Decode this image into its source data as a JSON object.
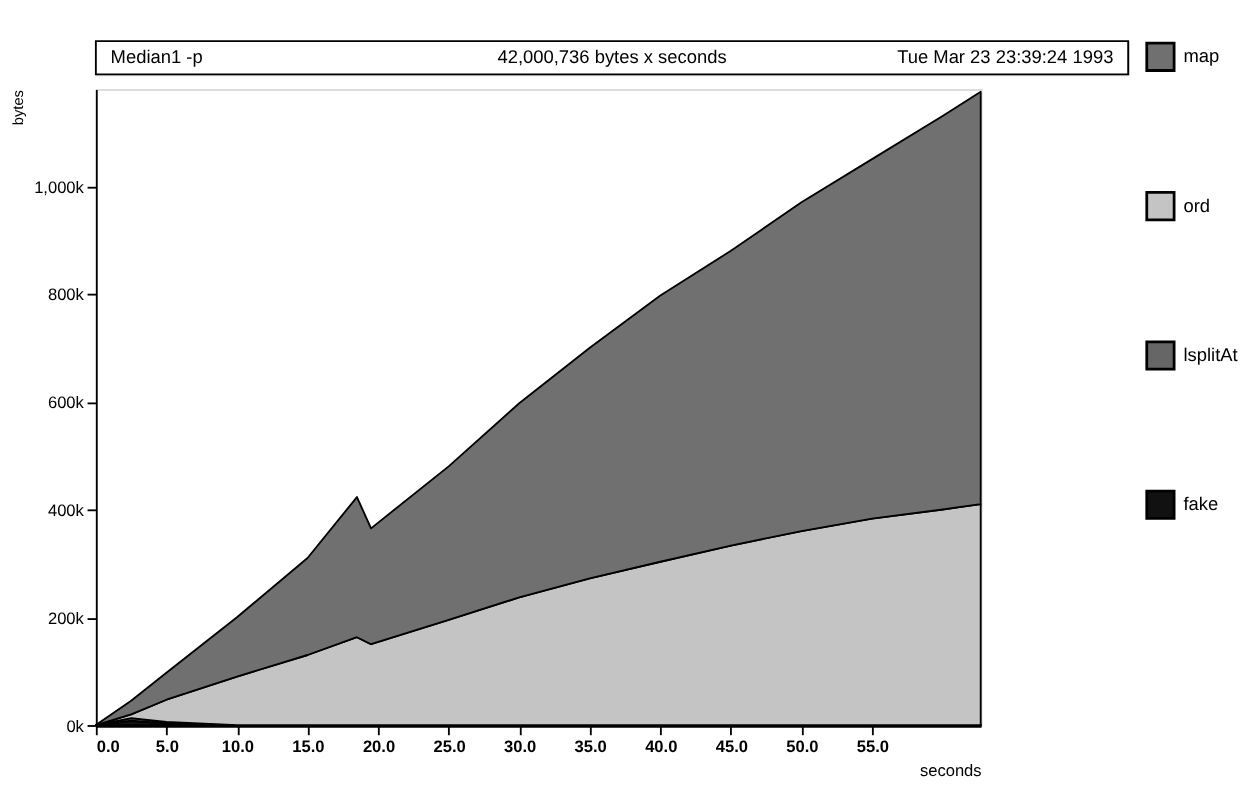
{
  "chart_data": {
    "type": "area",
    "stacked": true,
    "title": "Median1 -p",
    "subtitle": "42,000,736 bytes x seconds",
    "annotations": [
      "Tue Mar 23 23:39:24 1993"
    ],
    "xlabel": "seconds",
    "ylabel": "bytes",
    "x": [
      0,
      2.5,
      5,
      10,
      15,
      18.5,
      19.5,
      25,
      30,
      35,
      40,
      45,
      50,
      55,
      60,
      62.7
    ],
    "series": [
      {
        "name": "fake",
        "color": "#111111",
        "values": [
          0,
          8000,
          3000,
          0,
          0,
          0,
          0,
          0,
          0,
          0,
          0,
          0,
          0,
          0,
          0,
          0
        ]
      },
      {
        "name": "lsplitAt",
        "color": "#666666",
        "values": [
          0,
          5000,
          3000,
          0,
          0,
          0,
          0,
          0,
          0,
          0,
          0,
          0,
          0,
          0,
          0,
          0
        ]
      },
      {
        "name": "ord",
        "color": "#c4c4c4",
        "values": [
          0,
          7000,
          41000,
          90000,
          130000,
          163000,
          150000,
          195000,
          237000,
          272000,
          303000,
          333000,
          360000,
          383000,
          400000,
          410000
        ]
      },
      {
        "name": "map",
        "color": "#707070",
        "values": [
          0,
          25000,
          50000,
          110000,
          180000,
          260000,
          215000,
          285000,
          360000,
          428000,
          494000,
          547000,
          610000,
          667000,
          730000,
          765000
        ]
      }
    ],
    "xlim": [
      0,
      62.7
    ],
    "xticks": [
      {
        "value": 0,
        "label": "0.0"
      },
      {
        "value": 5,
        "label": "5.0"
      },
      {
        "value": 10,
        "label": "10.0"
      },
      {
        "value": 15,
        "label": "15.0"
      },
      {
        "value": 20,
        "label": "20.0"
      },
      {
        "value": 25,
        "label": "25.0"
      },
      {
        "value": 30,
        "label": "30.0"
      },
      {
        "value": 35,
        "label": "35.0"
      },
      {
        "value": 40,
        "label": "40.0"
      },
      {
        "value": 45,
        "label": "45.0"
      },
      {
        "value": 50,
        "label": "50.0"
      },
      {
        "value": 55,
        "label": "55.0"
      }
    ],
    "ylim": [
      0,
      1180000
    ],
    "yticks": [
      {
        "value": 0,
        "label": "0k"
      },
      {
        "value": 200000,
        "label": "200k"
      },
      {
        "value": 400000,
        "label": "400k"
      },
      {
        "value": 600000,
        "label": "600k"
      },
      {
        "value": 800000,
        "label": "800k"
      },
      {
        "value": 1000000,
        "label": "1,000k"
      }
    ],
    "grid": false,
    "legend": "right"
  }
}
